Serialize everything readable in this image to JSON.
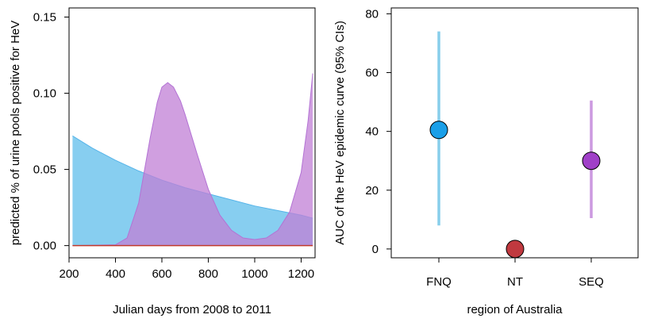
{
  "chart_data": [
    {
      "type": "area",
      "xlabel": "Julian days from 2008 to 2011",
      "ylabel": "predicted % of urine pools positive for HeV",
      "xlim": [
        200,
        1260
      ],
      "ylim": [
        -0.008,
        0.156
      ],
      "xticks": [
        200,
        400,
        600,
        800,
        1000,
        1200
      ],
      "yticks": [
        "0.00",
        "0.05",
        "0.10",
        "0.15"
      ],
      "grid": false,
      "series": [
        {
          "color": "#56B4E9",
          "fill": "#87CEF0",
          "x": [
            215,
            300,
            400,
            500,
            600,
            700,
            800,
            900,
            1000,
            1100,
            1200,
            1250
          ],
          "values": [
            0.072,
            0.064,
            0.056,
            0.049,
            0.043,
            0.038,
            0.034,
            0.03,
            0.026,
            0.023,
            0.02,
            0.018
          ]
        },
        {
          "color": "#B373D4",
          "fill": "#C07FD6",
          "x": [
            215,
            400,
            450,
            500,
            550,
            580,
            600,
            625,
            650,
            680,
            700,
            750,
            800,
            850,
            900,
            950,
            1000,
            1050,
            1100,
            1150,
            1200,
            1230,
            1250
          ],
          "values": [
            0.0,
            0.0005,
            0.005,
            0.028,
            0.071,
            0.094,
            0.104,
            0.107,
            0.104,
            0.095,
            0.086,
            0.061,
            0.037,
            0.02,
            0.01,
            0.005,
            0.004,
            0.005,
            0.01,
            0.022,
            0.048,
            0.082,
            0.113
          ]
        },
        {
          "color": "#C0392B",
          "x": [
            215,
            1250
          ],
          "values": [
            0.0,
            0.0
          ]
        }
      ]
    },
    {
      "type": "scatter",
      "xlabel": "region of Australia",
      "ylabel": "AUC of the HeV epidemic curve (95% CIs)",
      "categories": [
        "FNQ",
        "NT",
        "SEQ"
      ],
      "ylim": [
        -3,
        82
      ],
      "yticks": [
        0,
        20,
        40,
        60,
        80
      ],
      "grid": false,
      "points": [
        {
          "category": "FNQ",
          "value": 40.5,
          "lower": 8,
          "upper": 74,
          "color": "#1A9FE8",
          "ci_color": "#87CEEB"
        },
        {
          "category": "NT",
          "value": 0,
          "lower": 0,
          "upper": 0,
          "color": "#C0393F",
          "ci_color": "#C0393F"
        },
        {
          "category": "SEQ",
          "value": 30,
          "lower": 10.5,
          "upper": 50.5,
          "color": "#A040C8",
          "ci_color": "#CC99E0"
        }
      ]
    }
  ]
}
